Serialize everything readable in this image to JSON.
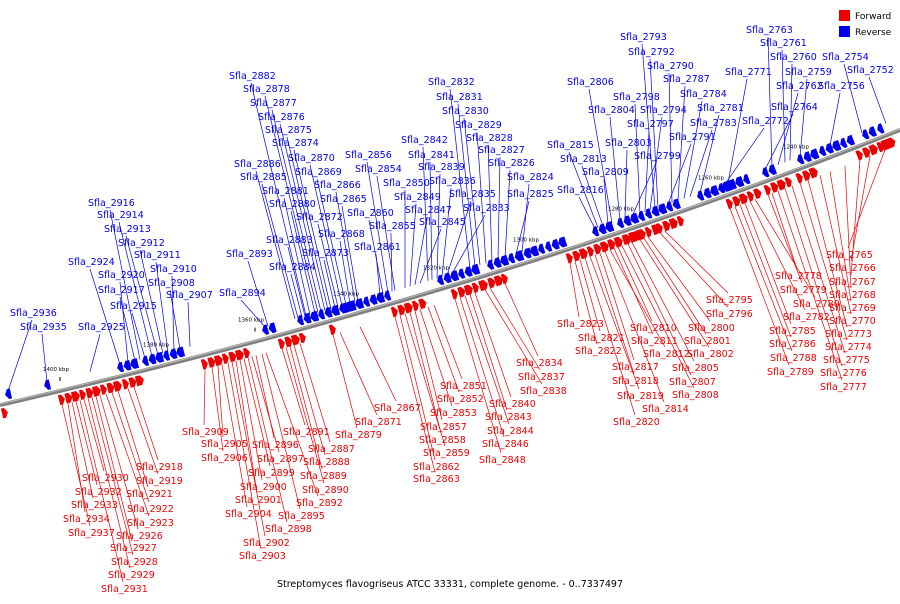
{
  "caption": "Streptomyces flavogriseus ATCC 33331, complete genome. - 0..7337497",
  "legend": {
    "forward": "Forward",
    "reverse": "Reverse"
  },
  "colors": {
    "forward": "#ee0000",
    "reverse": "#0000ee",
    "backbone": "#808080"
  },
  "ticks": [
    "1400 kbp",
    "1380 kbp",
    "1360 kbp",
    "1340 kbp",
    "1320 kbp",
    "1300 kbp",
    "1280 kbp",
    "1260 kbp",
    "1240 kbp"
  ],
  "reverse_labels": [
    "Sfla_2936",
    "Sfla_2935",
    "Sfla_2925",
    "Sfla_2924",
    "Sfla_2920",
    "Sfla_2917",
    "Sfla_2916",
    "Sfla_2915",
    "Sfla_2914",
    "Sfla_2913",
    "Sfla_2912",
    "Sfla_2911",
    "Sfla_2910",
    "Sfla_2908",
    "Sfla_2907",
    "Sfla_2894",
    "Sfla_2893",
    "Sfla_2886",
    "Sfla_2885",
    "Sfla_2884",
    "Sfla_2883",
    "Sfla_2882",
    "Sfla_2881",
    "Sfla_2880",
    "Sfla_2878",
    "Sfla_2877",
    "Sfla_2876",
    "Sfla_2875",
    "Sfla_2874",
    "Sfla_2873",
    "Sfla_2872",
    "Sfla_2870",
    "Sfla_2869",
    "Sfla_2868",
    "Sfla_2866",
    "Sfla_2865",
    "Sfla_2861",
    "Sfla_2860",
    "Sfla_2856",
    "Sfla_2855",
    "Sfla_2854",
    "Sfla_2850",
    "Sfla_2849",
    "Sfla_2847",
    "Sfla_2845",
    "Sfla_2842",
    "Sfla_2841",
    "Sfla_2839",
    "Sfla_2836",
    "Sfla_2835",
    "Sfla_2833",
    "Sfla_2832",
    "Sfla_2831",
    "Sfla_2830",
    "Sfla_2829",
    "Sfla_2828",
    "Sfla_2827",
    "Sfla_2826",
    "Sfla_2825",
    "Sfla_2824",
    "Sfla_2816",
    "Sfla_2815",
    "Sfla_2813",
    "Sfla_2809",
    "Sfla_2806",
    "Sfla_2804",
    "Sfla_2803",
    "Sfla_2799",
    "Sfla_2798",
    "Sfla_2797",
    "Sfla_2794",
    "Sfla_2793",
    "Sfla_2792",
    "Sfla_2791",
    "Sfla_2790",
    "Sfla_2787",
    "Sfla_2784",
    "Sfla_2783",
    "Sfla_2781",
    "Sfla_2772",
    "Sfla_2771",
    "Sfla_2764",
    "Sfla_2763",
    "Sfla_2762",
    "Sfla_2761",
    "Sfla_2760",
    "Sfla_2759",
    "Sfla_2756",
    "Sfla_2754",
    "Sfla_2752"
  ],
  "forward_labels": [
    "Sfla_2937",
    "Sfla_2934",
    "Sfla_2933",
    "Sfla_2932",
    "Sfla_2931",
    "Sfla_2930",
    "Sfla_2929",
    "Sfla_2928",
    "Sfla_2927",
    "Sfla_2926",
    "Sfla_2923",
    "Sfla_2922",
    "Sfla_2921",
    "Sfla_2919",
    "Sfla_2918",
    "Sfla_2909",
    "Sfla_2906",
    "Sfla_2905",
    "Sfla_2904",
    "Sfla_2903",
    "Sfla_2902",
    "Sfla_2901",
    "Sfla_2900",
    "Sfla_2899",
    "Sfla_2898",
    "Sfla_2897",
    "Sfla_2896",
    "Sfla_2895",
    "Sfla_2892",
    "Sfla_2891",
    "Sfla_2890",
    "Sfla_2889",
    "Sfla_2888",
    "Sfla_2887",
    "Sfla_2879",
    "Sfla_2871",
    "Sfla_2867",
    "Sfla_2863",
    "Sfla_2862",
    "Sfla_2859",
    "Sfla_2858",
    "Sfla_2857",
    "Sfla_2853",
    "Sfla_2852",
    "Sfla_2851",
    "Sfla_2848",
    "Sfla_2846",
    "Sfla_2844",
    "Sfla_2843",
    "Sfla_2840",
    "Sfla_2838",
    "Sfla_2837",
    "Sfla_2834",
    "Sfla_2823",
    "Sfla_2822",
    "Sfla_2821",
    "Sfla_2820",
    "Sfla_2819",
    "Sfla_2818",
    "Sfla_2817",
    "Sfla_2814",
    "Sfla_2812",
    "Sfla_2811",
    "Sfla_2810",
    "Sfla_2808",
    "Sfla_2807",
    "Sfla_2805",
    "Sfla_2802",
    "Sfla_2801",
    "Sfla_2800",
    "Sfla_2796",
    "Sfla_2795",
    "Sfla_2789",
    "Sfla_2788",
    "Sfla_2786",
    "Sfla_2785",
    "Sfla_2782",
    "Sfla_2780",
    "Sfla_2779",
    "Sfla_2778",
    "Sfla_2777",
    "Sfla_2776",
    "Sfla_2775",
    "Sfla_2774",
    "Sfla_2773",
    "Sfla_2770",
    "Sfla_2769",
    "Sfla_2768",
    "Sfla_2767",
    "Sfla_2766",
    "Sfla_2765"
  ]
}
